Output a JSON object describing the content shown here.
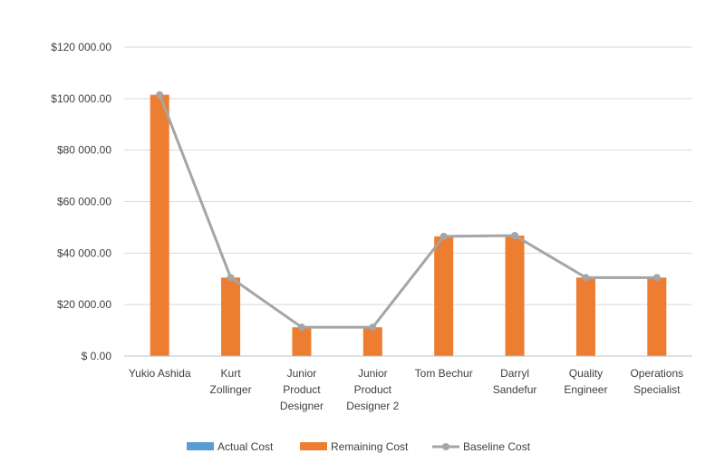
{
  "chart_data": {
    "type": "bar",
    "title": "",
    "xlabel": "",
    "ylabel": "",
    "categories": [
      [
        "Yukio Ashida"
      ],
      [
        "Kurt",
        "Zollinger"
      ],
      [
        "Junior",
        "Product",
        "Designer"
      ],
      [
        "Junior",
        "Product",
        "Designer 2"
      ],
      [
        "Tom Bechur"
      ],
      [
        "Darryl",
        "Sandefur"
      ],
      [
        "Quality",
        "Engineer"
      ],
      [
        "Operations",
        "Specialist"
      ]
    ],
    "ylim": [
      0,
      120000
    ],
    "yticks": [
      0,
      20000,
      40000,
      60000,
      80000,
      100000,
      120000
    ],
    "ytick_labels": [
      "$ 0.00",
      "$20 000.00",
      "$40 000.00",
      "$60 000.00",
      "$80 000.00",
      "$100 000.00",
      "$120 000.00"
    ],
    "grid": true,
    "legend_position": "bottom",
    "series": [
      {
        "name": "Actual Cost",
        "kind": "bar",
        "color": "#5B9BD5",
        "values": [
          0,
          0,
          0,
          0,
          0,
          0,
          0,
          0
        ]
      },
      {
        "name": "Remaining Cost",
        "kind": "bar",
        "color": "#ED7D31",
        "values": [
          101500,
          30500,
          11200,
          11200,
          46500,
          46800,
          30500,
          30500
        ]
      },
      {
        "name": "Baseline Cost",
        "kind": "line",
        "color": "#A5A5A5",
        "values": [
          101500,
          30500,
          11200,
          11200,
          46500,
          46800,
          30500,
          30500
        ]
      }
    ],
    "colors": {
      "gridline": "#D9D9D9",
      "axis": "#BFBFBF",
      "text": "#404040"
    }
  }
}
